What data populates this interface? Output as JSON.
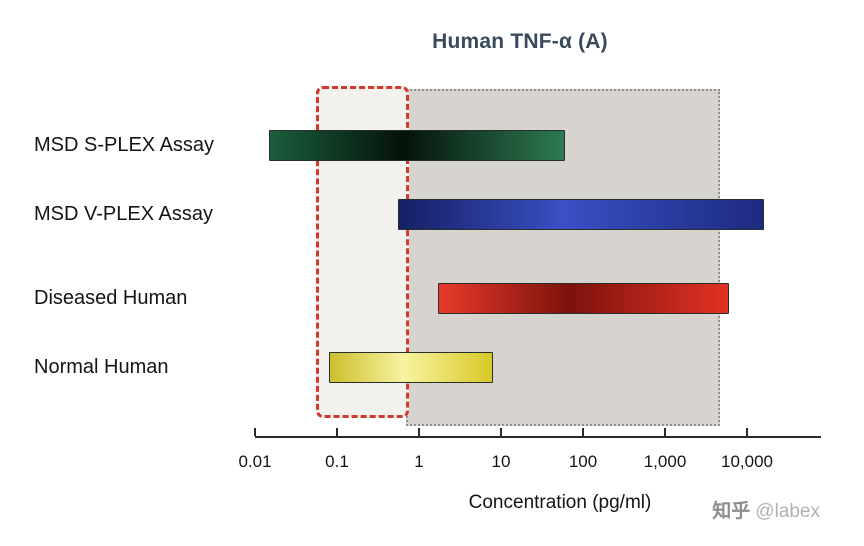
{
  "chart_data": {
    "type": "bar",
    "orientation": "horizontal",
    "title": "Human TNF-α (A)",
    "xlabel": "Concentration (pg/ml)",
    "ylabel": "",
    "x_scale": "log",
    "x_ticks": [
      {
        "value": 0.01,
        "label": "0.01"
      },
      {
        "value": 0.1,
        "label": "0.1"
      },
      {
        "value": 1,
        "label": "1"
      },
      {
        "value": 10,
        "label": "10"
      },
      {
        "value": 100,
        "label": "100"
      },
      {
        "value": 1000,
        "label": "1,000"
      },
      {
        "value": 10000,
        "label": "10,000"
      }
    ],
    "series": [
      {
        "name": "MSD S-PLEX Assay",
        "range_pg_ml": [
          0.015,
          60
        ],
        "color": "#17603c",
        "gradient": [
          "#1b5e3b",
          "#05120a",
          "#2e7a52"
        ]
      },
      {
        "name": "MSD V-PLEX Assay",
        "range_pg_ml": [
          0.55,
          16000
        ],
        "color": "#25359b",
        "gradient": [
          "#151f66",
          "#3a50c4",
          "#1c2a80"
        ]
      },
      {
        "name": "Diseased Human",
        "range_pg_ml": [
          1.7,
          6000
        ],
        "color": "#e02b20",
        "gradient": [
          "#e83a2a",
          "#7d120c",
          "#e33125"
        ]
      },
      {
        "name": "Normal Human",
        "range_pg_ml": [
          0.08,
          8
        ],
        "color": "#efe23a",
        "gradient": [
          "#cdbe2e",
          "#f7f3a0",
          "#d9c929"
        ]
      }
    ],
    "regions": {
      "assay_range_box": {
        "range_pg_ml": [
          0.7,
          4700
        ],
        "fill": "#d7d4cf",
        "border_color": "#8f8f8f",
        "border_style": "dotted"
      },
      "highlight_box": {
        "range_pg_ml": [
          0.055,
          0.75
        ],
        "fill": "#f2f1ee",
        "border_color": "#d5382c",
        "border_style": "dashed"
      }
    }
  },
  "watermark": {
    "brand": "知乎",
    "handle": "@labex"
  }
}
